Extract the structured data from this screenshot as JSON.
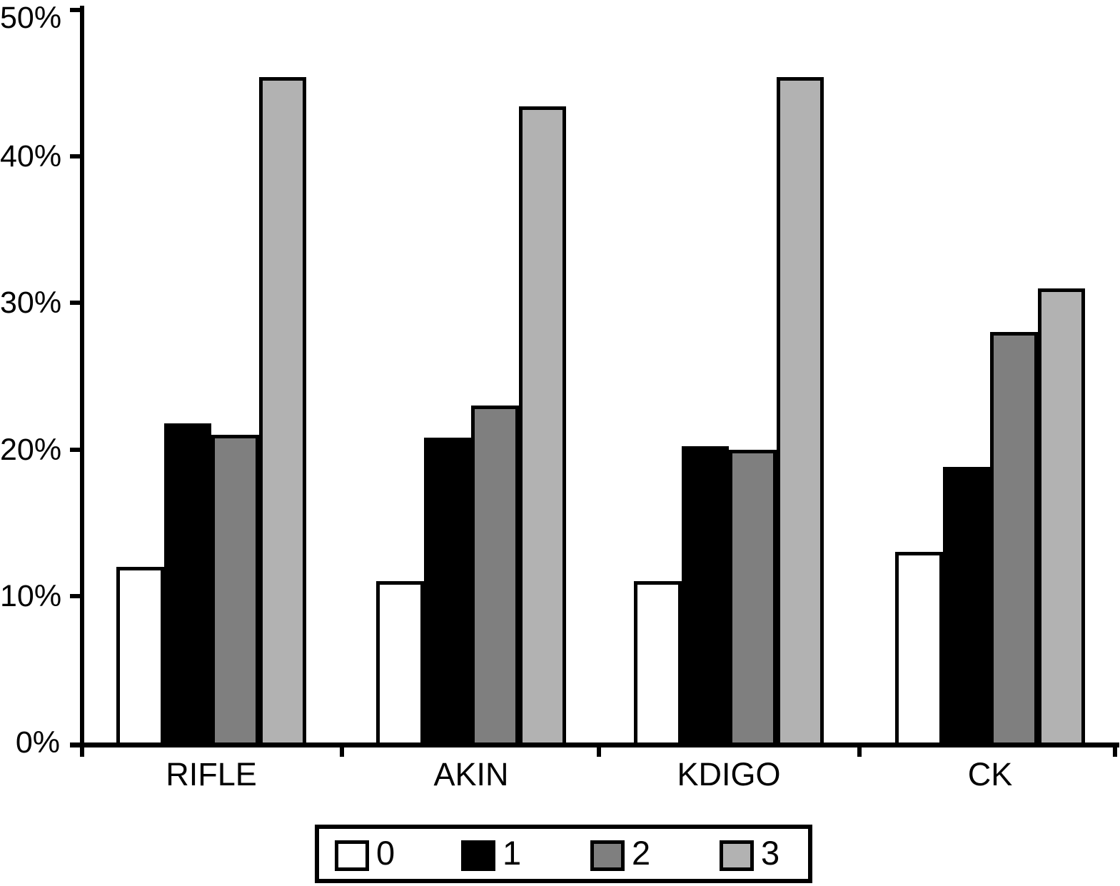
{
  "chart_data": {
    "type": "bar",
    "title": "",
    "xlabel": "",
    "ylabel": "",
    "categories": [
      "RIFLE",
      "AKIN",
      "KDIGO",
      "CK"
    ],
    "series": [
      {
        "name": "0",
        "color": "#ffffff",
        "values": [
          12.0,
          11.0,
          11.0,
          13.0
        ]
      },
      {
        "name": "1",
        "color": "#000000",
        "values": [
          21.8,
          20.8,
          20.2,
          18.8
        ]
      },
      {
        "name": "2",
        "color": "#7f7f7f",
        "values": [
          21.0,
          23.0,
          20.0,
          28.0
        ]
      },
      {
        "name": "3",
        "color": "#b2b2b2",
        "values": [
          45.4,
          43.4,
          45.4,
          31.0
        ]
      }
    ],
    "ylim": [
      0,
      50
    ],
    "ytick_values": [
      0,
      10,
      20,
      30,
      40,
      50
    ],
    "yticks": [
      "0%",
      "10%",
      "20%",
      "30%",
      "40%",
      "50%"
    ],
    "grid": false,
    "legend_position": "bottom",
    "bar_outline_color": "#000000",
    "axis_color": "#000000",
    "background_color": "#ffffff"
  }
}
